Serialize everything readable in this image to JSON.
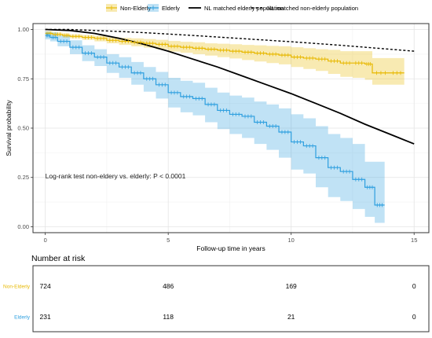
{
  "chart_data": [
    {
      "type": "line",
      "subtype": "kaplan-meier",
      "title": "",
      "xlabel": "Follow-up time in years",
      "ylabel": "Survival probability",
      "xlim": [
        -0.5,
        15.6
      ],
      "ylim": [
        -0.03,
        1.03
      ],
      "x_ticks": [
        0,
        5,
        10,
        15
      ],
      "x_tick_labels": [
        "0",
        "5",
        "10",
        "15"
      ],
      "y_ticks": [
        0,
        0.25,
        0.5,
        0.75,
        1.0
      ],
      "y_tick_labels": [
        "0.00",
        "0.25",
        "0.50",
        "0.75",
        "1.00"
      ],
      "grid": true,
      "legend_position": "top",
      "annotation": "Log-rank test non-eldery vs. elderly:  P < 0.0001",
      "series": [
        {
          "name": "Non-Elderly",
          "style": "step-with-ci",
          "color": "#E7B800",
          "x": [
            0,
            0.3,
            0.7,
            1,
            1.5,
            2,
            2.5,
            3,
            3.5,
            4,
            4.5,
            5,
            5.5,
            6,
            6.5,
            7,
            7.5,
            8,
            8.5,
            9,
            9.5,
            10,
            10.5,
            11,
            11.5,
            12,
            12.5,
            13,
            13.3,
            14,
            14.6
          ],
          "y": [
            0.98,
            0.975,
            0.97,
            0.965,
            0.96,
            0.955,
            0.945,
            0.94,
            0.935,
            0.93,
            0.925,
            0.915,
            0.91,
            0.905,
            0.9,
            0.895,
            0.89,
            0.885,
            0.88,
            0.875,
            0.87,
            0.86,
            0.855,
            0.85,
            0.84,
            0.83,
            0.83,
            0.825,
            0.78,
            0.78,
            0.78
          ],
          "ci_low": [
            0.975,
            0.968,
            0.96,
            0.955,
            0.948,
            0.94,
            0.93,
            0.922,
            0.915,
            0.908,
            0.9,
            0.888,
            0.882,
            0.875,
            0.868,
            0.86,
            0.853,
            0.845,
            0.838,
            0.83,
            0.823,
            0.81,
            0.8,
            0.79,
            0.775,
            0.76,
            0.755,
            0.745,
            0.72,
            0.72,
            0.72
          ],
          "ci_high": [
            0.99,
            0.985,
            0.98,
            0.975,
            0.972,
            0.968,
            0.962,
            0.958,
            0.955,
            0.952,
            0.948,
            0.942,
            0.938,
            0.935,
            0.93,
            0.928,
            0.925,
            0.922,
            0.92,
            0.917,
            0.915,
            0.91,
            0.905,
            0.9,
            0.897,
            0.89,
            0.89,
            0.89,
            0.855,
            0.855,
            0.855
          ]
        },
        {
          "name": "Elderly",
          "style": "step-with-ci",
          "color": "#2E9FDF",
          "x": [
            0,
            0.2,
            0.5,
            1,
            1.5,
            2,
            2.5,
            3,
            3.5,
            4,
            4.5,
            5,
            5.5,
            6,
            6.5,
            7,
            7.5,
            8,
            8.5,
            9,
            9.5,
            10,
            10.5,
            11,
            11.5,
            12,
            12.5,
            13,
            13.4,
            13.8
          ],
          "y": [
            0.97,
            0.96,
            0.94,
            0.91,
            0.88,
            0.86,
            0.83,
            0.81,
            0.78,
            0.75,
            0.72,
            0.68,
            0.66,
            0.65,
            0.62,
            0.59,
            0.57,
            0.56,
            0.53,
            0.51,
            0.48,
            0.43,
            0.41,
            0.35,
            0.3,
            0.28,
            0.24,
            0.2,
            0.11,
            0.11
          ],
          "ci_low": [
            0.95,
            0.94,
            0.915,
            0.875,
            0.84,
            0.815,
            0.78,
            0.755,
            0.72,
            0.685,
            0.65,
            0.605,
            0.58,
            0.565,
            0.53,
            0.495,
            0.47,
            0.45,
            0.42,
            0.39,
            0.35,
            0.29,
            0.27,
            0.2,
            0.15,
            0.13,
            0.09,
            0.05,
            0.02,
            0.02
          ],
          "ci_high": [
            0.99,
            0.985,
            0.97,
            0.945,
            0.92,
            0.9,
            0.875,
            0.86,
            0.835,
            0.81,
            0.785,
            0.755,
            0.74,
            0.73,
            0.705,
            0.68,
            0.665,
            0.655,
            0.635,
            0.62,
            0.6,
            0.57,
            0.55,
            0.51,
            0.47,
            0.45,
            0.42,
            0.33,
            0.33,
            0.33
          ]
        },
        {
          "name": "NL matched elderly population",
          "style": "solid",
          "color": "#000000",
          "x": [
            0,
            1,
            2,
            3,
            4,
            5,
            6,
            7,
            8,
            9,
            10,
            11,
            12,
            13,
            14,
            15
          ],
          "y": [
            1.0,
            0.995,
            0.98,
            0.955,
            0.925,
            0.89,
            0.85,
            0.81,
            0.765,
            0.72,
            0.675,
            0.625,
            0.575,
            0.52,
            0.47,
            0.42
          ]
        },
        {
          "name": "NL matched non-elderly population",
          "style": "dashed",
          "color": "#000000",
          "x": [
            0,
            1,
            2,
            3,
            4,
            5,
            6,
            7,
            8,
            9,
            10,
            11,
            12,
            13,
            14,
            15
          ],
          "y": [
            1.0,
            1.0,
            0.995,
            0.99,
            0.984,
            0.977,
            0.97,
            0.962,
            0.954,
            0.946,
            0.938,
            0.929,
            0.92,
            0.91,
            0.9,
            0.89
          ]
        }
      ]
    },
    {
      "type": "table",
      "title": "Number at risk",
      "x_ticks": [
        0,
        5,
        10,
        15
      ],
      "rows": [
        {
          "name": "Non-Elderly",
          "color": "#E7B800",
          "values": [
            "724",
            "486",
            "169",
            "0"
          ]
        },
        {
          "name": "Elderly",
          "color": "#2E9FDF",
          "values": [
            "231",
            "118",
            "21",
            "0"
          ]
        }
      ]
    }
  ]
}
